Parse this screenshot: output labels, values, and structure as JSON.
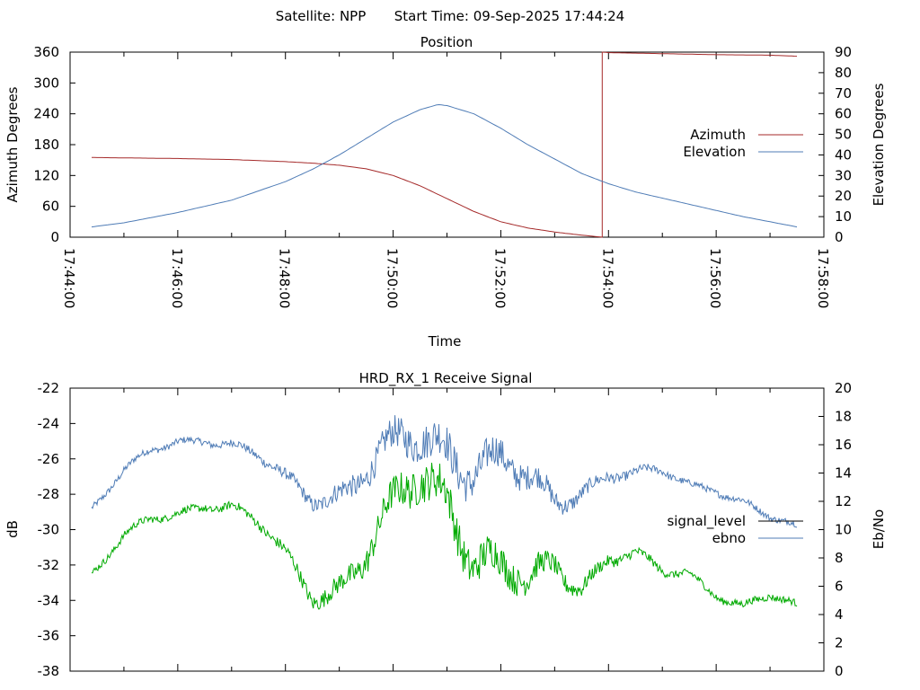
{
  "header": {
    "satellite": "Satellite: NPP",
    "start_time": "Start Time: 09-Sep-2025 17:44:24"
  },
  "chart_data": [
    {
      "type": "line",
      "title": "Position",
      "xlabel": "Time",
      "ylabel": "Azimuth Degrees",
      "y2label": "Elevation Degrees",
      "xlim": [
        "17:44:00",
        "17:58:00"
      ],
      "xticks": [
        "17:44:00",
        "17:46:00",
        "17:48:00",
        "17:50:00",
        "17:52:00",
        "17:54:00",
        "17:56:00",
        "17:58:00"
      ],
      "ylim": [
        0,
        360
      ],
      "yticks": [
        "0",
        "60",
        "120",
        "180",
        "240",
        "300",
        "360"
      ],
      "y2lim": [
        0,
        90
      ],
      "y2ticks": [
        "0",
        "10",
        "20",
        "30",
        "40",
        "50",
        "60",
        "70",
        "80",
        "90"
      ],
      "grid": false,
      "legend": "right",
      "series": [
        {
          "name": "Azimuth",
          "axis": "left",
          "color": "#a52a2a",
          "x": [
            "17:44:24",
            "17:46:00",
            "17:47:00",
            "17:48:00",
            "17:48:30",
            "17:49:00",
            "17:49:30",
            "17:50:00",
            "17:50:30",
            "17:51:00",
            "17:51:30",
            "17:52:00",
            "17:52:30",
            "17:53:00",
            "17:53:30",
            "17:53:53",
            "17:53:53",
            "17:54:00",
            "17:55:00",
            "17:56:00",
            "17:57:00",
            "17:57:30"
          ],
          "values": [
            155,
            153,
            151,
            147,
            144,
            140,
            133,
            120,
            100,
            75,
            50,
            30,
            18,
            10,
            4,
            0,
            360,
            359,
            357,
            355,
            354,
            352
          ]
        },
        {
          "name": "Elevation",
          "axis": "right",
          "color": "#4f7cb6",
          "x": [
            "17:44:24",
            "17:45:00",
            "17:46:00",
            "17:47:00",
            "17:48:00",
            "17:48:30",
            "17:49:00",
            "17:49:30",
            "17:50:00",
            "17:50:30",
            "17:50:50",
            "17:51:00",
            "17:51:30",
            "17:52:00",
            "17:52:30",
            "17:53:00",
            "17:53:30",
            "17:54:00",
            "17:54:30",
            "17:55:00",
            "17:55:30",
            "17:56:00",
            "17:56:30",
            "17:57:00",
            "17:57:30"
          ],
          "values": [
            5,
            7,
            12,
            18,
            27,
            33,
            40,
            48,
            56,
            62,
            64.5,
            64,
            60,
            53,
            45,
            38,
            31,
            26,
            22,
            19,
            16,
            13,
            10,
            7.5,
            5
          ]
        }
      ]
    },
    {
      "type": "line",
      "title": "HRD_RX_1 Receive Signal",
      "ylabel": "dB",
      "y2label": "Eb/No",
      "xlim": [
        "17:44:00",
        "17:58:00"
      ],
      "ylim": [
        -38,
        -22
      ],
      "yticks": [
        "-38",
        "-36",
        "-34",
        "-32",
        "-30",
        "-28",
        "-26",
        "-24",
        "-22"
      ],
      "y2lim": [
        0,
        20
      ],
      "y2ticks": [
        "0",
        "2",
        "4",
        "6",
        "8",
        "10",
        "12",
        "14",
        "16",
        "18",
        "20"
      ],
      "grid": false,
      "legend": "right",
      "series": [
        {
          "name": "signal_level",
          "axis": "left",
          "color": "#000000",
          "x": [],
          "values": []
        },
        {
          "name": "ebno",
          "axis": "right",
          "color": "#4f7cb6",
          "x": [
            "17:44:24",
            "17:45:00",
            "17:45:30",
            "17:46:00",
            "17:46:30",
            "17:47:00",
            "17:47:30",
            "17:48:00",
            "17:48:30",
            "17:49:00",
            "17:49:30",
            "17:50:00",
            "17:50:30",
            "17:51:00",
            "17:51:30",
            "17:52:00",
            "17:52:30",
            "17:53:00",
            "17:53:30",
            "17:54:00",
            "17:54:30",
            "17:55:00",
            "17:55:30",
            "17:56:00",
            "17:56:30",
            "17:57:00",
            "17:57:30"
          ],
          "values": [
            11.5,
            14,
            15.5,
            16.3,
            16.5,
            16,
            15,
            13.5,
            12.5,
            12.8,
            14,
            15,
            16.5,
            16.5,
            15,
            14.5,
            13,
            12,
            13,
            14,
            13.8,
            14,
            13.2,
            13,
            12,
            10.8,
            10
          ]
        },
        {
          "name": "",
          "axis": "left",
          "color": "#00aa00",
          "x": [
            "17:44:24",
            "17:45:00",
            "17:45:30",
            "17:46:00",
            "17:46:30",
            "17:47:00",
            "17:47:30",
            "17:48:00",
            "17:48:30",
            "17:49:00",
            "17:49:30",
            "17:50:00",
            "17:50:30",
            "17:51:00",
            "17:51:30",
            "17:52:00",
            "17:52:30",
            "17:53:00",
            "17:53:30",
            "17:54:00",
            "17:54:30",
            "17:55:00",
            "17:55:30",
            "17:56:00",
            "17:56:30",
            "17:57:00",
            "17:57:30"
          ],
          "values": [
            -32.5,
            -30.5,
            -29.5,
            -29,
            -28.5,
            -28.7,
            -29.8,
            -31.5,
            -33.5,
            -33,
            -31.5,
            -29.5,
            -27,
            -27.5,
            -31,
            -32.5,
            -33.5,
            -32,
            -33,
            -31.5,
            -31.5,
            -32.5,
            -32.5,
            -33.5,
            -34.3,
            -33.8,
            -34.5
          ]
        }
      ]
    }
  ]
}
